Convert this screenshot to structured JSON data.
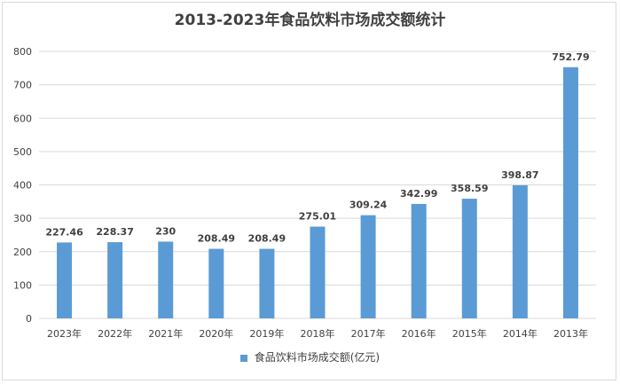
{
  "chart_data": {
    "type": "bar",
    "title": "2013-2023年食品饮料市场成交额统计",
    "categories": [
      "2023年",
      "2022年",
      "2021年",
      "2020年",
      "2019年",
      "2018年",
      "2017年",
      "2016年",
      "2015年",
      "2014年",
      "2013年"
    ],
    "series": [
      {
        "name": "食品饮料市场成交额(亿元)",
        "values": [
          227.46,
          228.37,
          230,
          208.49,
          208.49,
          275.01,
          309.24,
          342.99,
          358.59,
          398.87,
          752.79
        ],
        "labels": [
          "227.46",
          "228.37",
          "230",
          "208.49",
          "208.49",
          "275.01",
          "309.24",
          "342.99",
          "358.59",
          "398.87",
          "752.79"
        ]
      }
    ],
    "ylim": [
      0,
      800
    ],
    "yticks": [
      "0",
      "100",
      "200",
      "300",
      "400",
      "500",
      "600",
      "700",
      "800"
    ],
    "grid": true,
    "legend": "bottom",
    "bar_color": "#5b9bd5",
    "grid_color": "#d9d9d9"
  }
}
